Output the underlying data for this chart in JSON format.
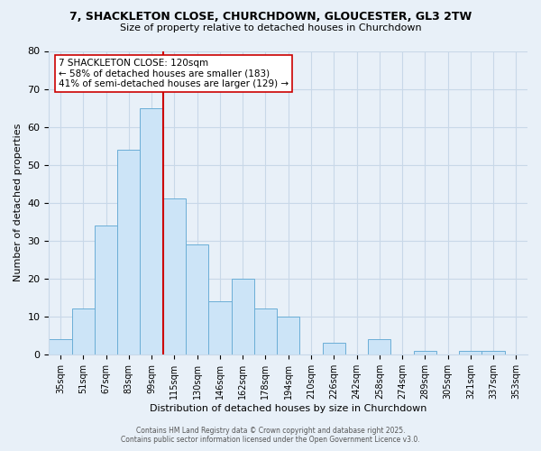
{
  "title": "7, SHACKLETON CLOSE, CHURCHDOWN, GLOUCESTER, GL3 2TW",
  "subtitle": "Size of property relative to detached houses in Churchdown",
  "xlabel": "Distribution of detached houses by size in Churchdown",
  "ylabel": "Number of detached properties",
  "bar_labels": [
    "35sqm",
    "51sqm",
    "67sqm",
    "83sqm",
    "99sqm",
    "115sqm",
    "130sqm",
    "146sqm",
    "162sqm",
    "178sqm",
    "194sqm",
    "210sqm",
    "226sqm",
    "242sqm",
    "258sqm",
    "274sqm",
    "289sqm",
    "305sqm",
    "321sqm",
    "337sqm",
    "353sqm"
  ],
  "bar_values": [
    4,
    12,
    34,
    54,
    65,
    41,
    29,
    14,
    20,
    12,
    10,
    0,
    3,
    0,
    4,
    0,
    1,
    0,
    1,
    1,
    0
  ],
  "bar_color": "#cce4f7",
  "bar_edge_color": "#6baed6",
  "grid_color": "#c8d8e8",
  "background_color": "#e8f0f8",
  "vline_color": "#cc0000",
  "vline_position": 5,
  "annotation_title": "7 SHACKLETON CLOSE: 120sqm",
  "annotation_line1": "← 58% of detached houses are smaller (183)",
  "annotation_line2": "41% of semi-detached houses are larger (129) →",
  "annotation_box_facecolor": "#ffffff",
  "annotation_border_color": "#cc0000",
  "ylim": [
    0,
    80
  ],
  "yticks": [
    0,
    10,
    20,
    30,
    40,
    50,
    60,
    70,
    80
  ],
  "title_fontsize": 9,
  "subtitle_fontsize": 8,
  "footer1": "Contains HM Land Registry data © Crown copyright and database right 2025.",
  "footer2": "Contains public sector information licensed under the Open Government Licence v3.0."
}
